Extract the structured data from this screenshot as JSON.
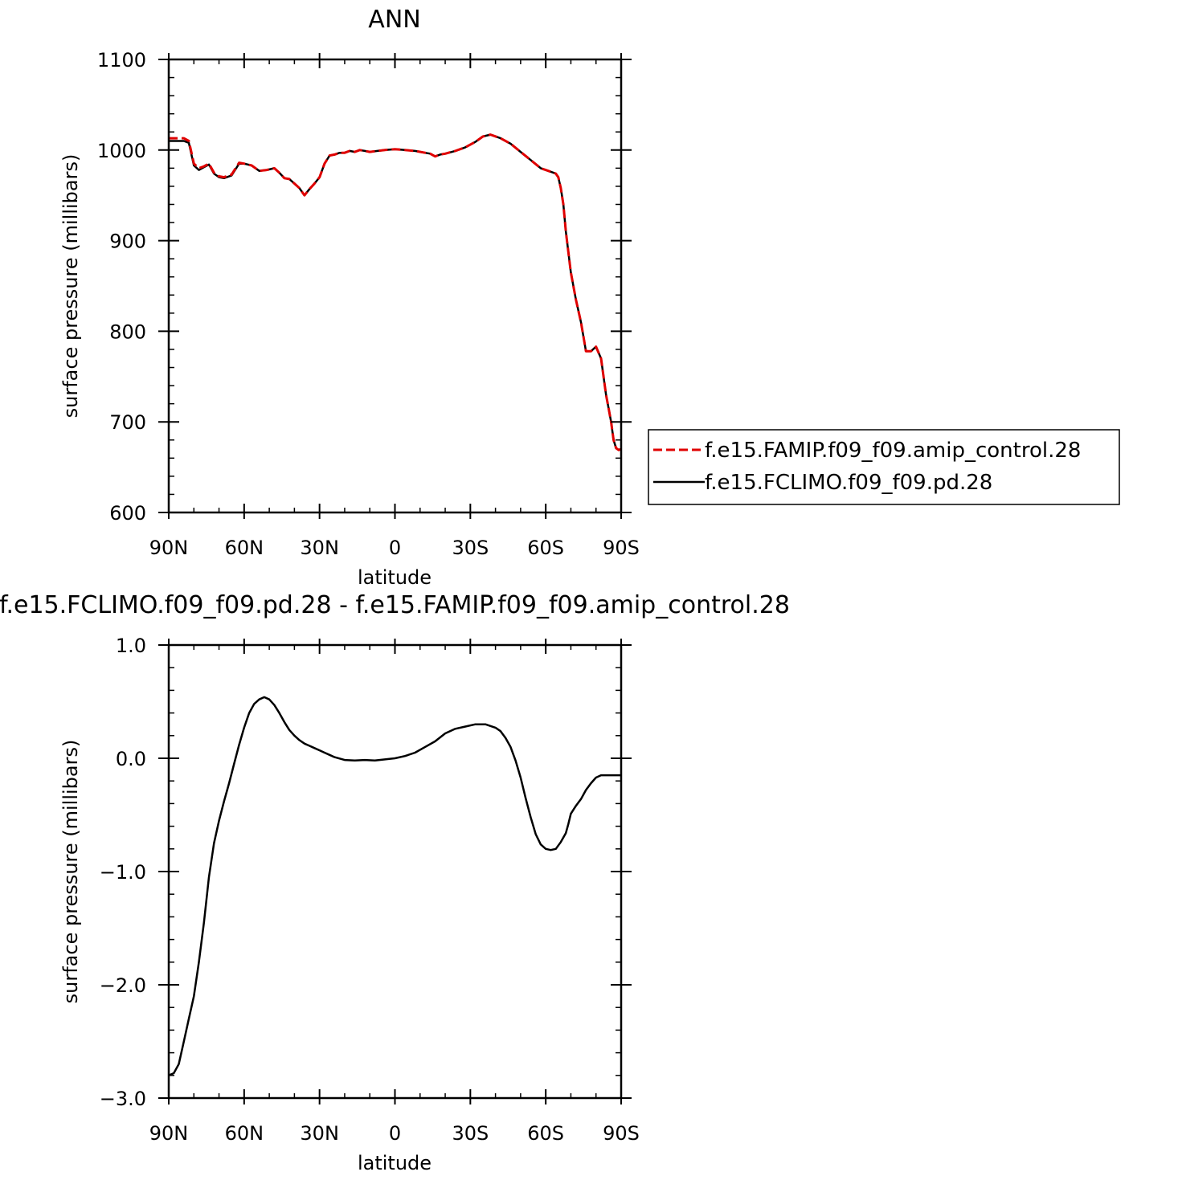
{
  "chart_data": [
    {
      "type": "line",
      "title": "ANN",
      "xlabel": "latitude",
      "ylabel": "surface pressure (millibars)",
      "xlim": [
        90,
        -90
      ],
      "ylim": [
        600,
        1100
      ],
      "x_ticks": [
        {
          "value": 90,
          "label": "90N"
        },
        {
          "value": 60,
          "label": "60N"
        },
        {
          "value": 30,
          "label": "30N"
        },
        {
          "value": 0,
          "label": "0"
        },
        {
          "value": -30,
          "label": "30S"
        },
        {
          "value": -60,
          "label": "60S"
        },
        {
          "value": -90,
          "label": "90S"
        }
      ],
      "y_ticks": [
        {
          "value": 600,
          "label": "600"
        },
        {
          "value": 700,
          "label": "700"
        },
        {
          "value": 800,
          "label": "800"
        },
        {
          "value": 900,
          "label": "900"
        },
        {
          "value": 1000,
          "label": "1000"
        },
        {
          "value": 1100,
          "label": "1100"
        }
      ],
      "legend_position": "right",
      "series": [
        {
          "name": "f.e15.FAMIP.f09_f09.amip_control.28",
          "color": "#e00000",
          "dash": "dashed",
          "x": [
            90,
            87,
            84,
            82,
            80,
            78,
            76,
            74,
            72,
            70,
            68,
            65,
            62,
            60,
            57,
            54,
            51,
            48,
            46,
            44,
            42,
            40,
            38,
            36,
            34,
            32,
            30,
            28,
            26,
            24,
            22,
            20,
            18,
            16,
            14,
            12,
            10,
            7,
            4,
            0,
            -4,
            -8,
            -12,
            -14,
            -16,
            -18,
            -20,
            -24,
            -28,
            -32,
            -35,
            -38,
            -42,
            -46,
            -50,
            -54,
            -58,
            -61,
            -64,
            -65,
            -66,
            -67,
            -68,
            -70,
            -72,
            -74,
            -76,
            -78,
            -80,
            -82,
            -84,
            -85,
            -86,
            -87,
            -88,
            -89,
            -90
          ],
          "values": [
            1013,
            1013,
            1013,
            1010,
            985,
            980,
            982,
            985,
            975,
            971,
            970,
            973,
            986,
            985,
            983,
            977,
            978,
            980,
            975,
            969,
            968,
            963,
            958,
            950,
            957,
            963,
            970,
            985,
            994,
            995,
            997,
            997,
            999,
            998,
            1000,
            999,
            998,
            999,
            1000,
            1001,
            1000,
            999,
            997,
            996,
            993,
            995,
            996,
            999,
            1003,
            1009,
            1015,
            1017,
            1013,
            1007,
            998,
            989,
            980,
            977,
            974,
            970,
            958,
            940,
            910,
            865,
            835,
            810,
            778,
            778,
            783,
            770,
            730,
            715,
            700,
            680,
            671,
            669,
            670
          ]
        },
        {
          "name": "f.e15.FCLIMO.f09_f09.pd.28",
          "color": "#000000",
          "dash": "solid",
          "x": [
            90,
            87,
            84,
            82,
            80,
            78,
            76,
            74,
            72,
            70,
            68,
            65,
            62,
            60,
            57,
            54,
            51,
            48,
            46,
            44,
            42,
            40,
            38,
            36,
            34,
            32,
            30,
            28,
            26,
            24,
            22,
            20,
            18,
            16,
            14,
            12,
            10,
            7,
            4,
            0,
            -4,
            -8,
            -12,
            -14,
            -16,
            -18,
            -20,
            -24,
            -28,
            -32,
            -35,
            -38,
            -42,
            -46,
            -50,
            -54,
            -58,
            -61,
            -64,
            -65,
            -66,
            -67,
            -68,
            -70,
            -72,
            -74,
            -76,
            -78,
            -80,
            -82,
            -84,
            -85,
            -86,
            -87,
            -88,
            -89,
            -90
          ],
          "values": [
            1010,
            1010,
            1010,
            1008,
            983,
            978,
            981,
            984,
            974,
            970,
            969,
            972,
            985,
            985,
            983,
            977,
            978,
            980,
            975,
            969,
            968,
            963,
            958,
            950,
            957,
            963,
            970,
            985,
            994,
            995,
            997,
            997,
            999,
            998,
            1000,
            999,
            998,
            999,
            1000,
            1001,
            1000,
            999,
            997,
            996,
            993,
            995,
            996,
            999,
            1003,
            1009,
            1015,
            1017,
            1013,
            1007,
            998,
            989,
            980,
            977,
            974,
            970,
            958,
            940,
            910,
            865,
            835,
            810,
            778,
            778,
            783,
            770,
            730,
            715,
            700,
            680,
            671,
            669,
            670
          ]
        }
      ]
    },
    {
      "type": "line",
      "title": "f.e15.FCLIMO.f09_f09.pd.28 - f.e15.FAMIP.f09_f09.amip_control.28",
      "xlabel": "latitude",
      "ylabel": "surface pressure (millibars)",
      "xlim": [
        90,
        -90
      ],
      "ylim": [
        -3.0,
        1.0
      ],
      "x_ticks": [
        {
          "value": 90,
          "label": "90N"
        },
        {
          "value": 60,
          "label": "60N"
        },
        {
          "value": 30,
          "label": "30N"
        },
        {
          "value": 0,
          "label": "0"
        },
        {
          "value": -30,
          "label": "30S"
        },
        {
          "value": -60,
          "label": "60S"
        },
        {
          "value": -90,
          "label": "90S"
        }
      ],
      "y_ticks": [
        {
          "value": -3.0,
          "label": "−3.0"
        },
        {
          "value": -2.0,
          "label": "−2.0"
        },
        {
          "value": -1.0,
          "label": "−1.0"
        },
        {
          "value": 0.0,
          "label": "0.0"
        },
        {
          "value": 1.0,
          "label": "1.0"
        }
      ],
      "series": [
        {
          "color": "#000000",
          "dash": "solid",
          "x": [
            90,
            88,
            86,
            84,
            82,
            80,
            78,
            76,
            74,
            72,
            70,
            68,
            66,
            64,
            62,
            60,
            58,
            56,
            54,
            52,
            50,
            48,
            46,
            44,
            42,
            40,
            38,
            36,
            34,
            32,
            30,
            28,
            26,
            24,
            20,
            16,
            12,
            8,
            4,
            0,
            -4,
            -8,
            -12,
            -16,
            -20,
            -24,
            -28,
            -32,
            -36,
            -40,
            -42,
            -44,
            -46,
            -48,
            -50,
            -52,
            -54,
            -56,
            -58,
            -60,
            -62,
            -64,
            -66,
            -68,
            -69,
            -70,
            -72,
            -74,
            -76,
            -78,
            -80,
            -82,
            -84,
            -86,
            -88,
            -90
          ],
          "values": [
            -2.8,
            -2.78,
            -2.7,
            -2.5,
            -2.3,
            -2.1,
            -1.8,
            -1.45,
            -1.05,
            -0.75,
            -0.55,
            -0.38,
            -0.22,
            -0.05,
            0.12,
            0.27,
            0.4,
            0.48,
            0.52,
            0.54,
            0.52,
            0.47,
            0.4,
            0.32,
            0.25,
            0.2,
            0.16,
            0.13,
            0.11,
            0.09,
            0.07,
            0.05,
            0.03,
            0.01,
            -0.015,
            -0.02,
            -0.015,
            -0.02,
            -0.01,
            0.0,
            0.02,
            0.05,
            0.1,
            0.15,
            0.22,
            0.26,
            0.28,
            0.3,
            0.3,
            0.27,
            0.24,
            0.18,
            0.1,
            -0.02,
            -0.17,
            -0.35,
            -0.52,
            -0.67,
            -0.76,
            -0.8,
            -0.81,
            -0.8,
            -0.74,
            -0.66,
            -0.58,
            -0.49,
            -0.42,
            -0.36,
            -0.28,
            -0.22,
            -0.17,
            -0.15,
            -0.15,
            -0.15,
            -0.15,
            -0.15
          ]
        }
      ]
    }
  ]
}
